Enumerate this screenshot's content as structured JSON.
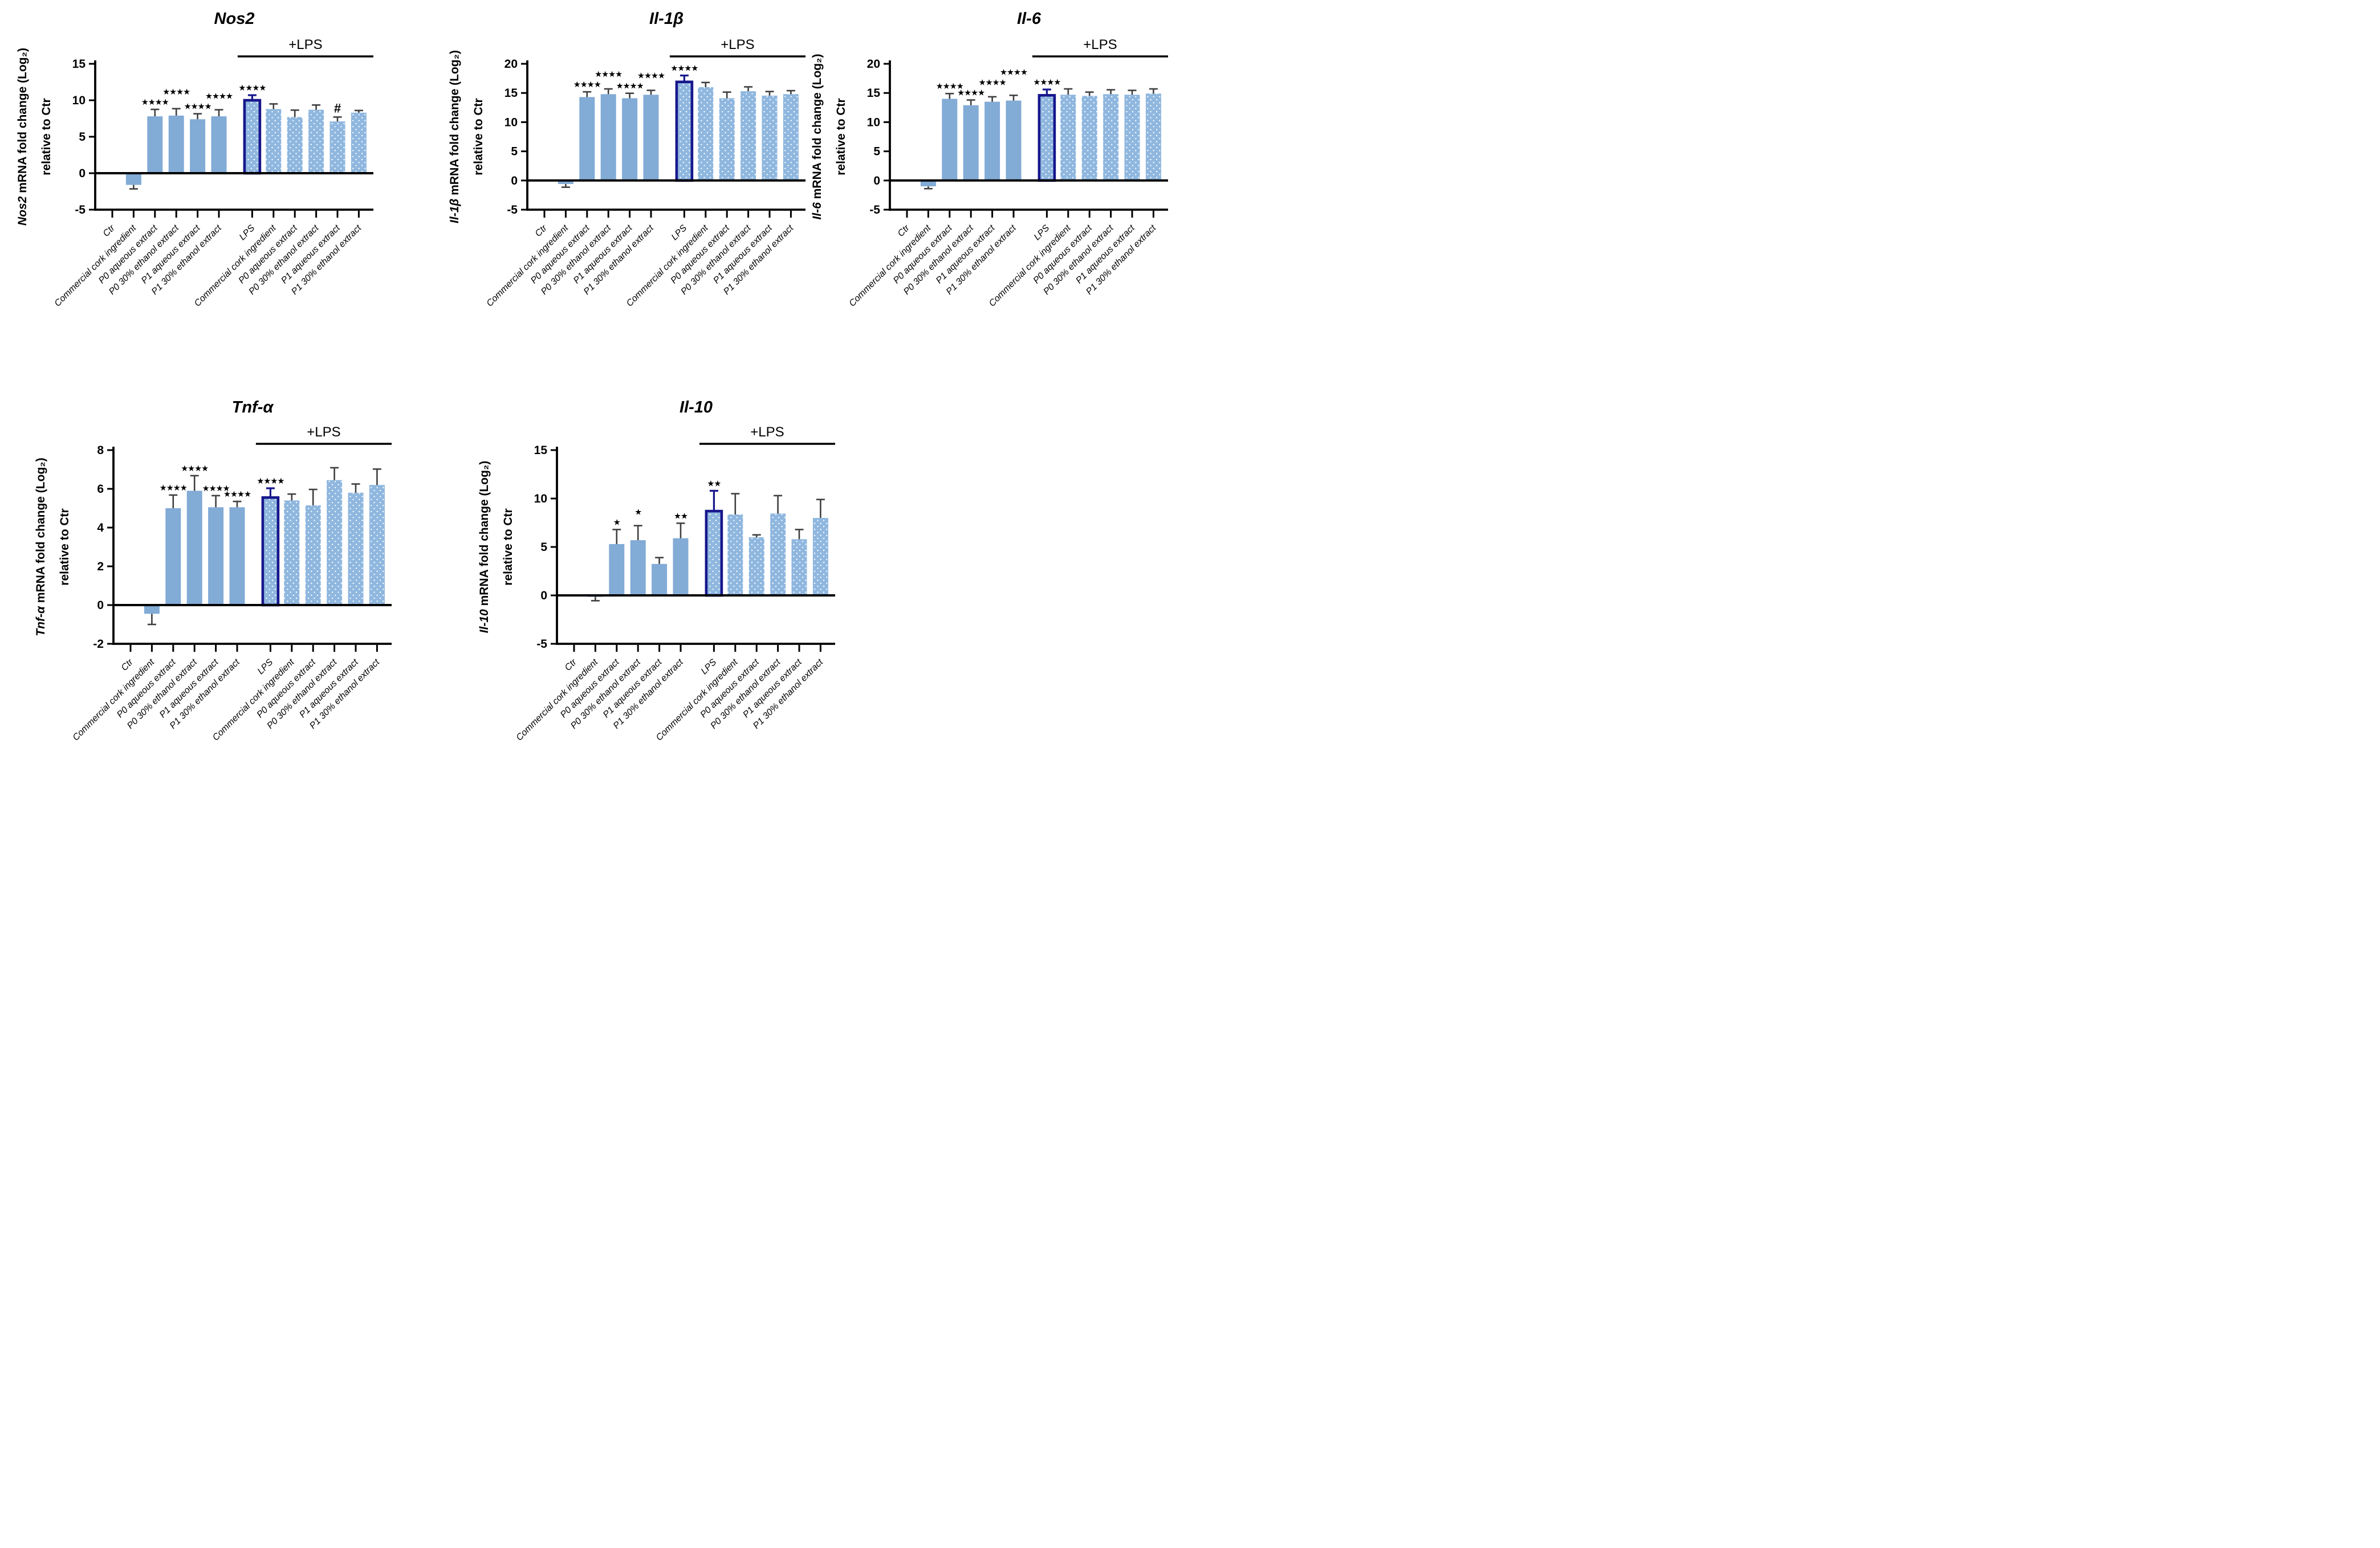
{
  "figure": {
    "description": "mRNA fold change bar charts",
    "group_label": "+LPS"
  },
  "style": {
    "background": "#ffffff",
    "bar_fill": "#82ABD6",
    "bar_fill_lps_group": "#8FB7DF",
    "dot_color": "#ffffff",
    "lps_outline": "#17178C",
    "error_color": "#3f3f3f",
    "axis_color": "#000000",
    "text_color": "#000000"
  },
  "chart_data": [
    {
      "type": "bar",
      "row": "top",
      "title": "Nos2",
      "ylabel": {
        "gene": "Nos2",
        "rest": " mRNA fold change (Log₂)",
        "line2": "relative to Ctr"
      },
      "group_label": "+LPS",
      "lps_group_start": 6,
      "categories": [
        "Ctr",
        "Commercial cork ingredient",
        "P0 aqueous extract",
        "P0 30% ethanol extract",
        "P1 aqueous extract",
        "P1 30% ethanol extract",
        "LPS",
        "Commercial cork ingredient",
        "P0 aqueous extract",
        "P0 30% ethanol extract",
        "P1 aqueous extract",
        "P1 30% ethanol extract"
      ],
      "values": [
        0,
        -1.6,
        7.8,
        7.9,
        7.4,
        7.8,
        10.0,
        8.8,
        7.7,
        8.7,
        7.1,
        8.3
      ],
      "errors": [
        0,
        0.55,
        0.95,
        0.95,
        0.75,
        0.9,
        0.7,
        0.7,
        0.95,
        0.65,
        0.6,
        0.3
      ],
      "annotations": [
        "",
        "",
        "****",
        "****",
        "****",
        "****",
        "****",
        "",
        "",
        "",
        "#",
        ""
      ],
      "ylim": [
        -5,
        15
      ],
      "yticks": [
        -5,
        0,
        5,
        10,
        15
      ],
      "grid": false,
      "legend": false
    },
    {
      "type": "bar",
      "row": "top",
      "title": "Il-1β",
      "ylabel": {
        "gene": "Il-1β",
        "rest": " mRNA fold change (Log₂)",
        "line2": "relative to Ctr"
      },
      "group_label": "+LPS",
      "lps_group_start": 6,
      "categories": [
        "Ctr",
        "Commercial cork ingredient",
        "P0 aqueous extract",
        "P0 30% ethanol extract",
        "P1 aqueous extract",
        "P1 30% ethanol extract",
        "LPS",
        "Commercial cork ingredient",
        "P0 aqueous extract",
        "P0 30% ethanol extract",
        "P1 aqueous extract",
        "P1 30% ethanol extract"
      ],
      "values": [
        0,
        -0.6,
        14.3,
        14.8,
        14.1,
        14.7,
        16.9,
        16.0,
        14.1,
        15.3,
        14.55,
        14.8
      ],
      "errors": [
        0,
        0.55,
        0.9,
        0.9,
        0.85,
        0.75,
        1.1,
        0.8,
        1.05,
        0.75,
        0.7,
        0.6
      ],
      "annotations": [
        "",
        "",
        "****",
        "****",
        "****",
        "****",
        "****",
        "",
        "",
        "",
        "",
        ""
      ],
      "ylim": [
        -5,
        20
      ],
      "yticks": [
        -5,
        0,
        5,
        10,
        15,
        20
      ],
      "grid": false,
      "legend": false
    },
    {
      "type": "bar",
      "row": "top",
      "title": "Il-6",
      "ylabel": {
        "gene": "Il-6",
        "rest": " mRNA fold change (Log₂)",
        "line2": "relative to Ctr"
      },
      "group_label": "+LPS",
      "lps_group_start": 6,
      "categories": [
        "Ctr",
        "Commercial cork ingredient",
        "P0 aqueous extract",
        "P0 30% ethanol extract",
        "P1 aqueous extract",
        "P1 30% ethanol extract",
        "LPS",
        "Commercial cork ingredient",
        "P0 aqueous extract",
        "P0 30% ethanol extract",
        "P1 aqueous extract",
        "P1 30% ethanol extract"
      ],
      "values": [
        0,
        -1.0,
        14.0,
        12.9,
        13.5,
        13.7,
        14.6,
        14.7,
        14.5,
        14.8,
        14.7,
        14.9
      ],
      "errors": [
        0,
        0.4,
        0.9,
        0.9,
        0.85,
        0.9,
        1.0,
        1.0,
        0.65,
        0.75,
        0.75,
        0.8
      ],
      "annotations": [
        "",
        "",
        "****",
        "****",
        "****",
        "****",
        "****",
        "",
        "",
        "",
        "",
        ""
      ],
      "ylim": [
        -5,
        20
      ],
      "yticks": [
        -5,
        0,
        5,
        10,
        15,
        20
      ],
      "grid": false,
      "legend": false
    },
    {
      "type": "bar",
      "row": "bottom",
      "title": "Tnf-α",
      "ylabel": {
        "gene": "Tnf-α",
        "rest": " mRNA fold change (Log₂)",
        "line2": "relative to Ctr"
      },
      "group_label": "+LPS",
      "lps_group_start": 6,
      "categories": [
        "Ctr",
        "Commercial cork ingredient",
        "P0 aqueous extract",
        "P0 30% ethanol extract",
        "P1 aqueous extract",
        "P1 30% ethanol extract",
        "LPS",
        "Commercial cork ingredient",
        "P0 aqueous extract",
        "P0 30% ethanol extract",
        "P1 aqueous extract",
        "P1 30% ethanol extract"
      ],
      "values": [
        0,
        -0.45,
        5.0,
        5.9,
        5.05,
        5.05,
        5.55,
        5.4,
        5.15,
        6.45,
        5.8,
        6.2
      ],
      "errors": [
        0,
        0.55,
        0.68,
        0.78,
        0.6,
        0.3,
        0.48,
        0.33,
        0.82,
        0.64,
        0.45,
        0.82
      ],
      "annotations": [
        "",
        "",
        "****",
        "****",
        "****",
        "****",
        "****",
        "",
        "",
        "",
        "",
        ""
      ],
      "ylim": [
        -2,
        8
      ],
      "yticks": [
        -2,
        0,
        2,
        4,
        6,
        8
      ],
      "grid": false,
      "legend": false
    },
    {
      "type": "bar",
      "row": "bottom",
      "title": "Il-10",
      "ylabel": {
        "gene": "Il-10",
        "rest": " mRNA fold change (Log₂)",
        "line2": "relative to Ctr"
      },
      "group_label": "+LPS",
      "lps_group_start": 6,
      "categories": [
        "Ctr",
        "Commercial cork ingredient",
        "P0 aqueous extract",
        "P0 30% ethanol extract",
        "P1 aqueous extract",
        "P1 30% ethanol extract",
        "LPS",
        "Commercial cork ingredient",
        "P0 aqueous extract",
        "P0 30% ethanol extract",
        "P1 aqueous extract",
        "P1 30% ethanol extract"
      ],
      "values": [
        0,
        -0.15,
        5.3,
        5.7,
        3.25,
        5.9,
        8.7,
        8.35,
        6.0,
        8.45,
        5.8,
        8.0
      ],
      "errors": [
        0,
        0.4,
        1.5,
        1.5,
        0.65,
        1.55,
        2.1,
        2.15,
        0.25,
        1.85,
        1.0,
        1.9
      ],
      "annotations": [
        "",
        "",
        "*",
        "*",
        "",
        "**",
        "**",
        "",
        "",
        "",
        "",
        ""
      ],
      "ylim": [
        -5,
        15
      ],
      "yticks": [
        -5,
        0,
        5,
        10,
        15
      ],
      "grid": false,
      "legend": false
    }
  ]
}
